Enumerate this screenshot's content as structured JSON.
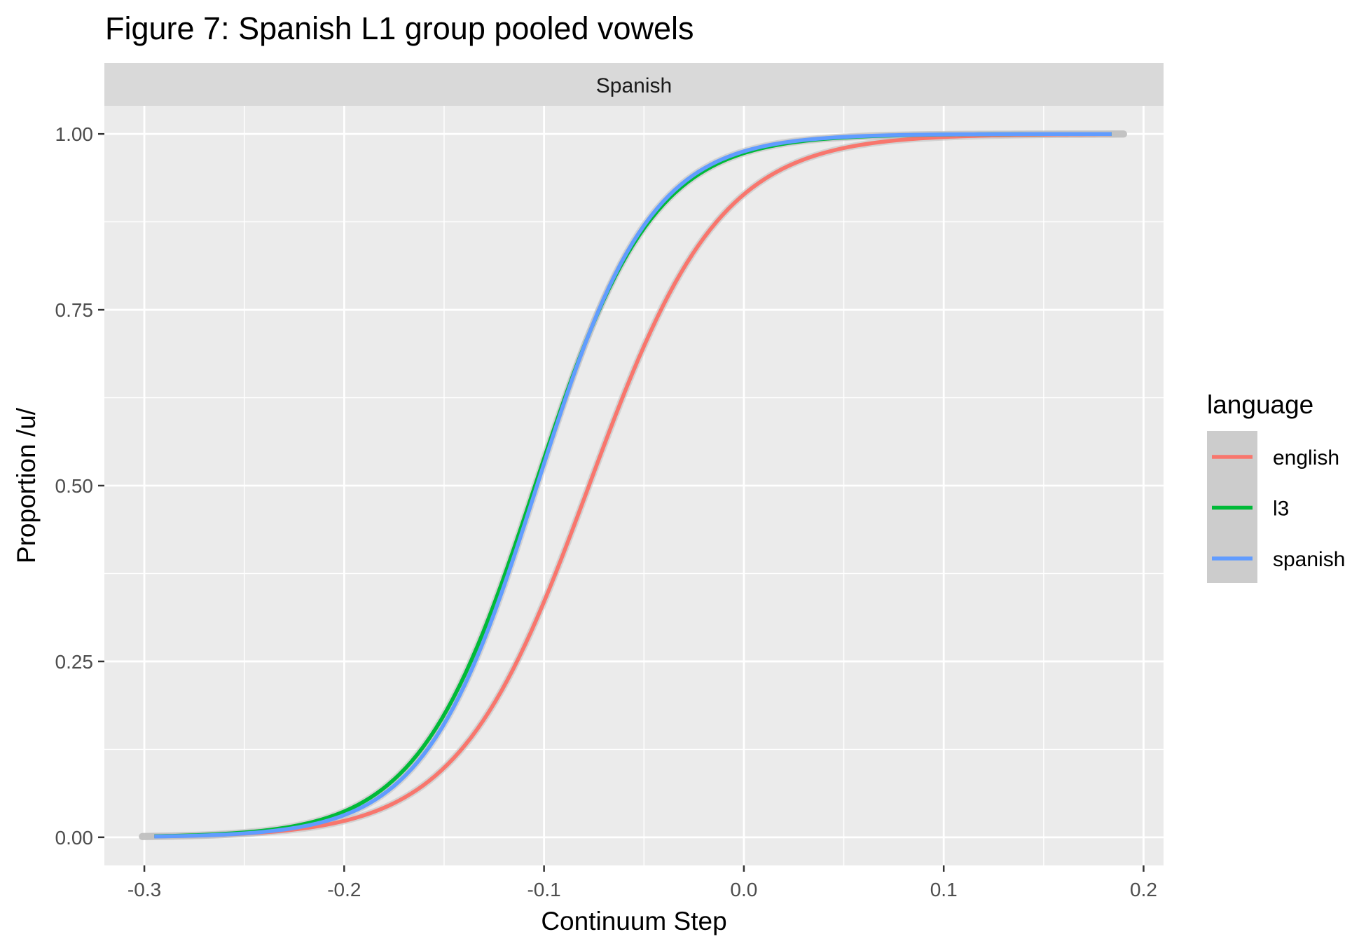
{
  "chart_data": {
    "type": "line",
    "title": "Figure 7: Spanish L1 group pooled vowels",
    "facet_label": "Spanish",
    "xlabel": "Continuum Step",
    "ylabel": "Proportion /u/",
    "xlim": [
      -0.32,
      0.21
    ],
    "ylim": [
      -0.04,
      1.04
    ],
    "x_ticks": [
      -0.3,
      -0.2,
      -0.1,
      0.0,
      0.1,
      0.2
    ],
    "x_tick_labels": [
      "-0.3",
      "-0.2",
      "-0.1",
      "0.0",
      "0.1",
      "0.2"
    ],
    "y_ticks": [
      0,
      0.25,
      0.5,
      0.75,
      1
    ],
    "y_tick_labels": [
      "0.00",
      "0.25",
      "0.50",
      "0.75",
      "1.00"
    ],
    "x_range": [
      -0.295,
      0.184
    ],
    "grid": true,
    "confidence_band": true,
    "legend": {
      "title": "language",
      "position": "right"
    },
    "colors": {
      "panel_bg": "#ebebeb",
      "strip_bg": "#d9d9d9",
      "grid": "#ffffff",
      "band": "#c4c4c4"
    },
    "series": [
      {
        "name": "english",
        "color": "#F8766D",
        "midpoint": -0.0775,
        "slope": 30.5,
        "band_halfwidth": 0.006
      },
      {
        "name": "l3",
        "color": "#00BA38",
        "midpoint": -0.1045,
        "slope": 34.2,
        "band_halfwidth": 0.006
      },
      {
        "name": "spanish",
        "color": "#619CFF",
        "midpoint": -0.1035,
        "slope": 35.5,
        "band_halfwidth": 0.006
      }
    ]
  }
}
